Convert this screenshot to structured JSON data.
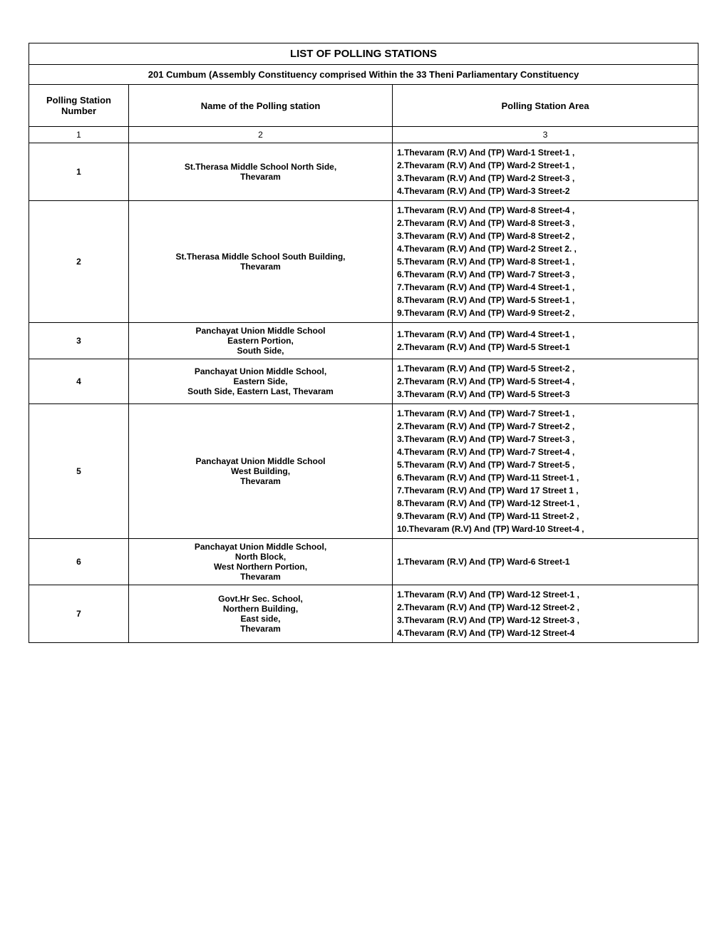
{
  "title": "LIST OF POLLING STATIONS",
  "subtitle": "201 Cumbum (Assembly Constituency comprised Within the 33 Theni Parliamentary Constituency",
  "columns": {
    "col1_header": "Polling Station Number",
    "col2_header": "Name of  the Polling station",
    "col3_header": "Polling Station Area",
    "col1_num": "1",
    "col2_num": "2",
    "col3_num": "3"
  },
  "rows": [
    {
      "number": "1",
      "name_lines": [
        "St.Therasa Middle School North Side,",
        "Thevaram"
      ],
      "areas": [
        "1.Thevaram (R.V) And (TP) Ward-1 Street-1 ,",
        "2.Thevaram (R.V) And (TP) Ward-2 Street-1 ,",
        "3.Thevaram (R.V) And (TP) Ward-2 Street-3 ,",
        "4.Thevaram (R.V) And (TP) Ward-3 Street-2"
      ]
    },
    {
      "number": "2",
      "name_lines": [
        "St.Therasa Middle School South Building,",
        "Thevaram"
      ],
      "areas": [
        "1.Thevaram (R.V) And (TP) Ward-8 Street-4 ,",
        "2.Thevaram (R.V) And (TP) Ward-8 Street-3 ,",
        "3.Thevaram (R.V) And (TP) Ward-8 Street-2 ,",
        "4.Thevaram (R.V) And (TP) Ward-2 Street 2. ,",
        "5.Thevaram (R.V) And (TP) Ward-8 Street-1 ,",
        "6.Thevaram (R.V) And (TP) Ward-7 Street-3 ,",
        "7.Thevaram (R.V) And (TP) Ward-4 Street-1 ,",
        "8.Thevaram (R.V) And (TP) Ward-5 Street-1 ,",
        "9.Thevaram (R.V) And (TP) Ward-9 Street-2 ,"
      ]
    },
    {
      "number": "3",
      "name_lines": [
        "Panchayat Union Middle School",
        "Eastern Portion,",
        "South Side,"
      ],
      "areas": [
        "1.Thevaram (R.V) And (TP) Ward-4 Street-1 ,",
        "2.Thevaram (R.V) And (TP) Ward-5 Street-1"
      ]
    },
    {
      "number": "4",
      "name_lines": [
        "Panchayat Union Middle School,",
        "Eastern Side,",
        "South Side, Eastern Last, Thevaram"
      ],
      "areas": [
        "1.Thevaram (R.V) And (TP) Ward-5 Street-2 ,",
        "2.Thevaram (R.V) And (TP) Ward-5 Street-4 ,",
        "3.Thevaram (R.V) And (TP) Ward-5 Street-3"
      ]
    },
    {
      "number": "5",
      "name_lines": [
        "Panchayat Union Middle School",
        "West Building,",
        "Thevaram"
      ],
      "areas": [
        "1.Thevaram (R.V) And (TP) Ward-7 Street-1 ,",
        "2.Thevaram (R.V) And (TP) Ward-7 Street-2 ,",
        "3.Thevaram (R.V) And (TP) Ward-7 Street-3 ,",
        "4.Thevaram (R.V) And (TP) Ward-7 Street-4 ,",
        "5.Thevaram (R.V) And (TP) Ward-7 Street-5 ,",
        "6.Thevaram (R.V) And (TP) Ward-11 Street-1 ,",
        "7.Thevaram (R.V) And (TP) Ward 17 Street 1 ,",
        "8.Thevaram (R.V) And (TP) Ward-12 Street-1 ,",
        "9.Thevaram (R.V) And (TP) Ward-11 Street-2 ,",
        "10.Thevaram (R.V) And (TP) Ward-10 Street-4 ,"
      ]
    },
    {
      "number": "6",
      "name_lines": [
        "Panchayat Union Middle School,",
        "North Block,",
        "West Northern Portion,",
        "Thevaram"
      ],
      "areas": [
        "1.Thevaram (R.V) And (TP) Ward-6 Street-1"
      ]
    },
    {
      "number": "7",
      "name_lines": [
        "Govt.Hr Sec. School,",
        "Northern Building,",
        "East side,",
        "Thevaram"
      ],
      "areas": [
        "1.Thevaram (R.V) And (TP) Ward-12 Street-1 ,",
        "2.Thevaram (R.V) And (TP) Ward-12 Street-2 ,",
        "3.Thevaram (R.V) And (TP) Ward-12 Street-3 ,",
        "4.Thevaram (R.V) And (TP) Ward-12 Street-4"
      ]
    }
  ]
}
